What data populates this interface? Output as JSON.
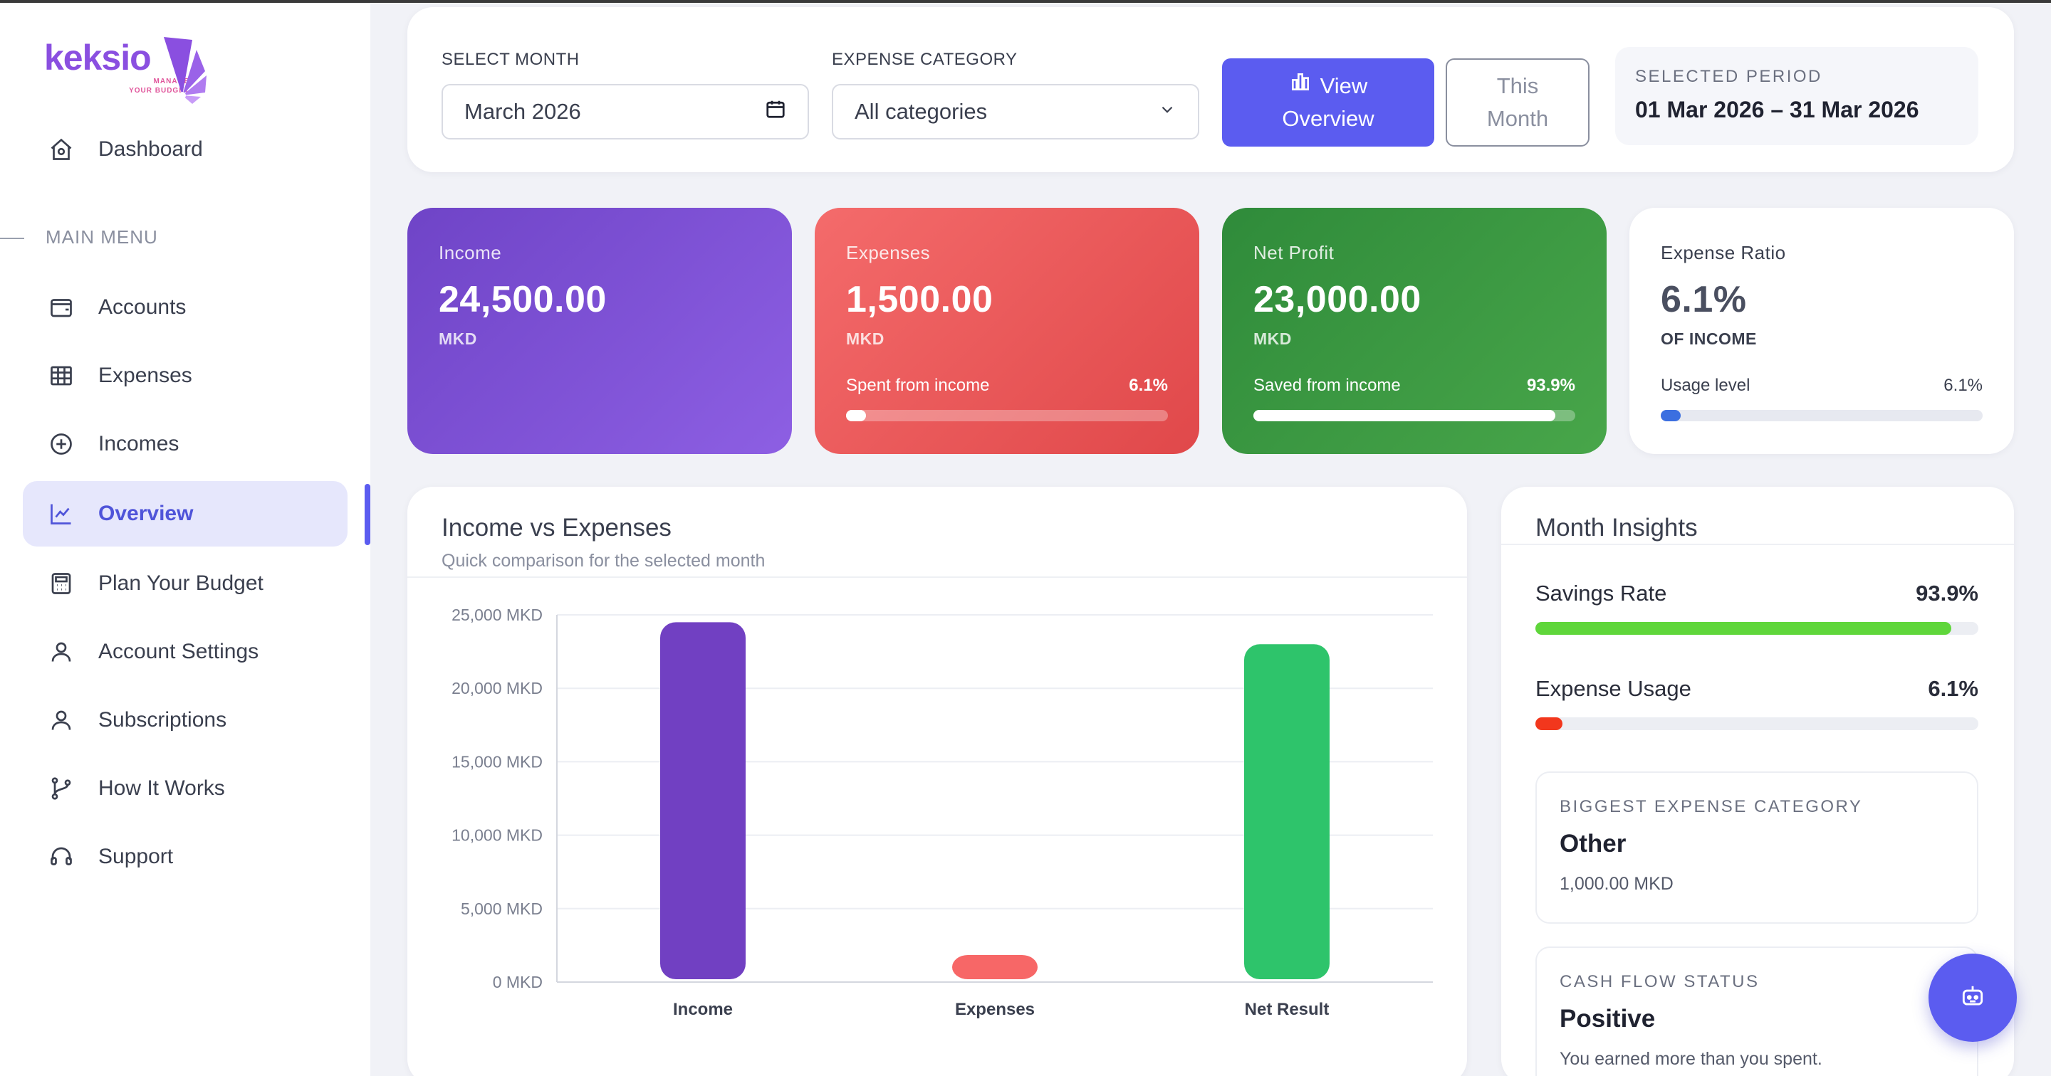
{
  "brand": {
    "name": "keksio",
    "tagline_line1": "MANAGE",
    "tagline_line2": "YOUR BUDGET",
    "accent": "#8a4fe0",
    "tag_color": "#e0559b"
  },
  "sidebar": {
    "dashboard": {
      "label": "Dashboard",
      "icon": "home-icon"
    },
    "menu_heading": "MAIN MENU",
    "items": [
      {
        "label": "Accounts",
        "icon": "wallet-icon"
      },
      {
        "label": "Expenses",
        "icon": "table-icon"
      },
      {
        "label": "Incomes",
        "icon": "plus-circle-icon"
      },
      {
        "label": "Overview",
        "icon": "line-chart-icon",
        "active": true
      },
      {
        "label": "Plan Your Budget",
        "icon": "calculator-icon"
      },
      {
        "label": "Account Settings",
        "icon": "user-icon"
      },
      {
        "label": "Subscriptions",
        "icon": "user-icon"
      },
      {
        "label": "How It Works",
        "icon": "git-branch-icon"
      },
      {
        "label": "Support",
        "icon": "headset-icon"
      }
    ]
  },
  "filters": {
    "month_label": "SELECT MONTH",
    "month_value": "March 2026",
    "category_label": "EXPENSE CATEGORY",
    "category_value": "All categories",
    "view_button_line1": "View",
    "view_button_line2": "Overview",
    "this_month_line1": "This",
    "this_month_line2": "Month",
    "period_label": "SELECTED PERIOD",
    "period_value": "01 Mar 2026 – 31 Mar 2026"
  },
  "kpis": {
    "income": {
      "name": "Income",
      "value": "24,500.00",
      "unit": "MKD"
    },
    "expenses": {
      "name": "Expenses",
      "value": "1,500.00",
      "unit": "MKD",
      "bar_label": "Spent from income",
      "bar_pct_text": "6.1%",
      "bar_pct": 6.1
    },
    "net": {
      "name": "Net Profit",
      "value": "23,000.00",
      "unit": "MKD",
      "bar_label": "Saved from income",
      "bar_pct_text": "93.9%",
      "bar_pct": 93.9
    },
    "ratio": {
      "name": "Expense Ratio",
      "value": "6.1%",
      "unit": "OF INCOME",
      "bar_label": "Usage level",
      "bar_pct_text": "6.1%",
      "bar_pct": 6.1
    }
  },
  "chart": {
    "title": "Income vs Expenses",
    "subtitle": "Quick comparison for the selected month"
  },
  "chart_data": {
    "type": "bar",
    "categories": [
      "Income",
      "Expenses",
      "Net Result"
    ],
    "values": [
      24500,
      1500,
      23000
    ],
    "colors": [
      "#7140c2",
      "#f76767",
      "#2ec46b"
    ],
    "yticks": [
      "0 MKD",
      "5,000 MKD",
      "10,000 MKD",
      "15,000 MKD",
      "20,000 MKD",
      "25,000 MKD"
    ],
    "ylim": [
      0,
      25000
    ],
    "grid": true
  },
  "insights": {
    "title": "Month Insights",
    "savings_label": "Savings Rate",
    "savings_value": "93.9%",
    "savings_pct": 93.9,
    "savings_color": "#5fd63b",
    "usage_label": "Expense Usage",
    "usage_value": "6.1%",
    "usage_pct": 6.1,
    "usage_color": "#f2371d",
    "biggest_label": "BIGGEST EXPENSE CATEGORY",
    "biggest_value": "Other",
    "biggest_amount": "1,000.00 MKD",
    "cash_label": "CASH FLOW STATUS",
    "cash_value": "Positive",
    "cash_desc": "You earned more than you spent."
  },
  "fab": {
    "icon": "robot-icon"
  }
}
